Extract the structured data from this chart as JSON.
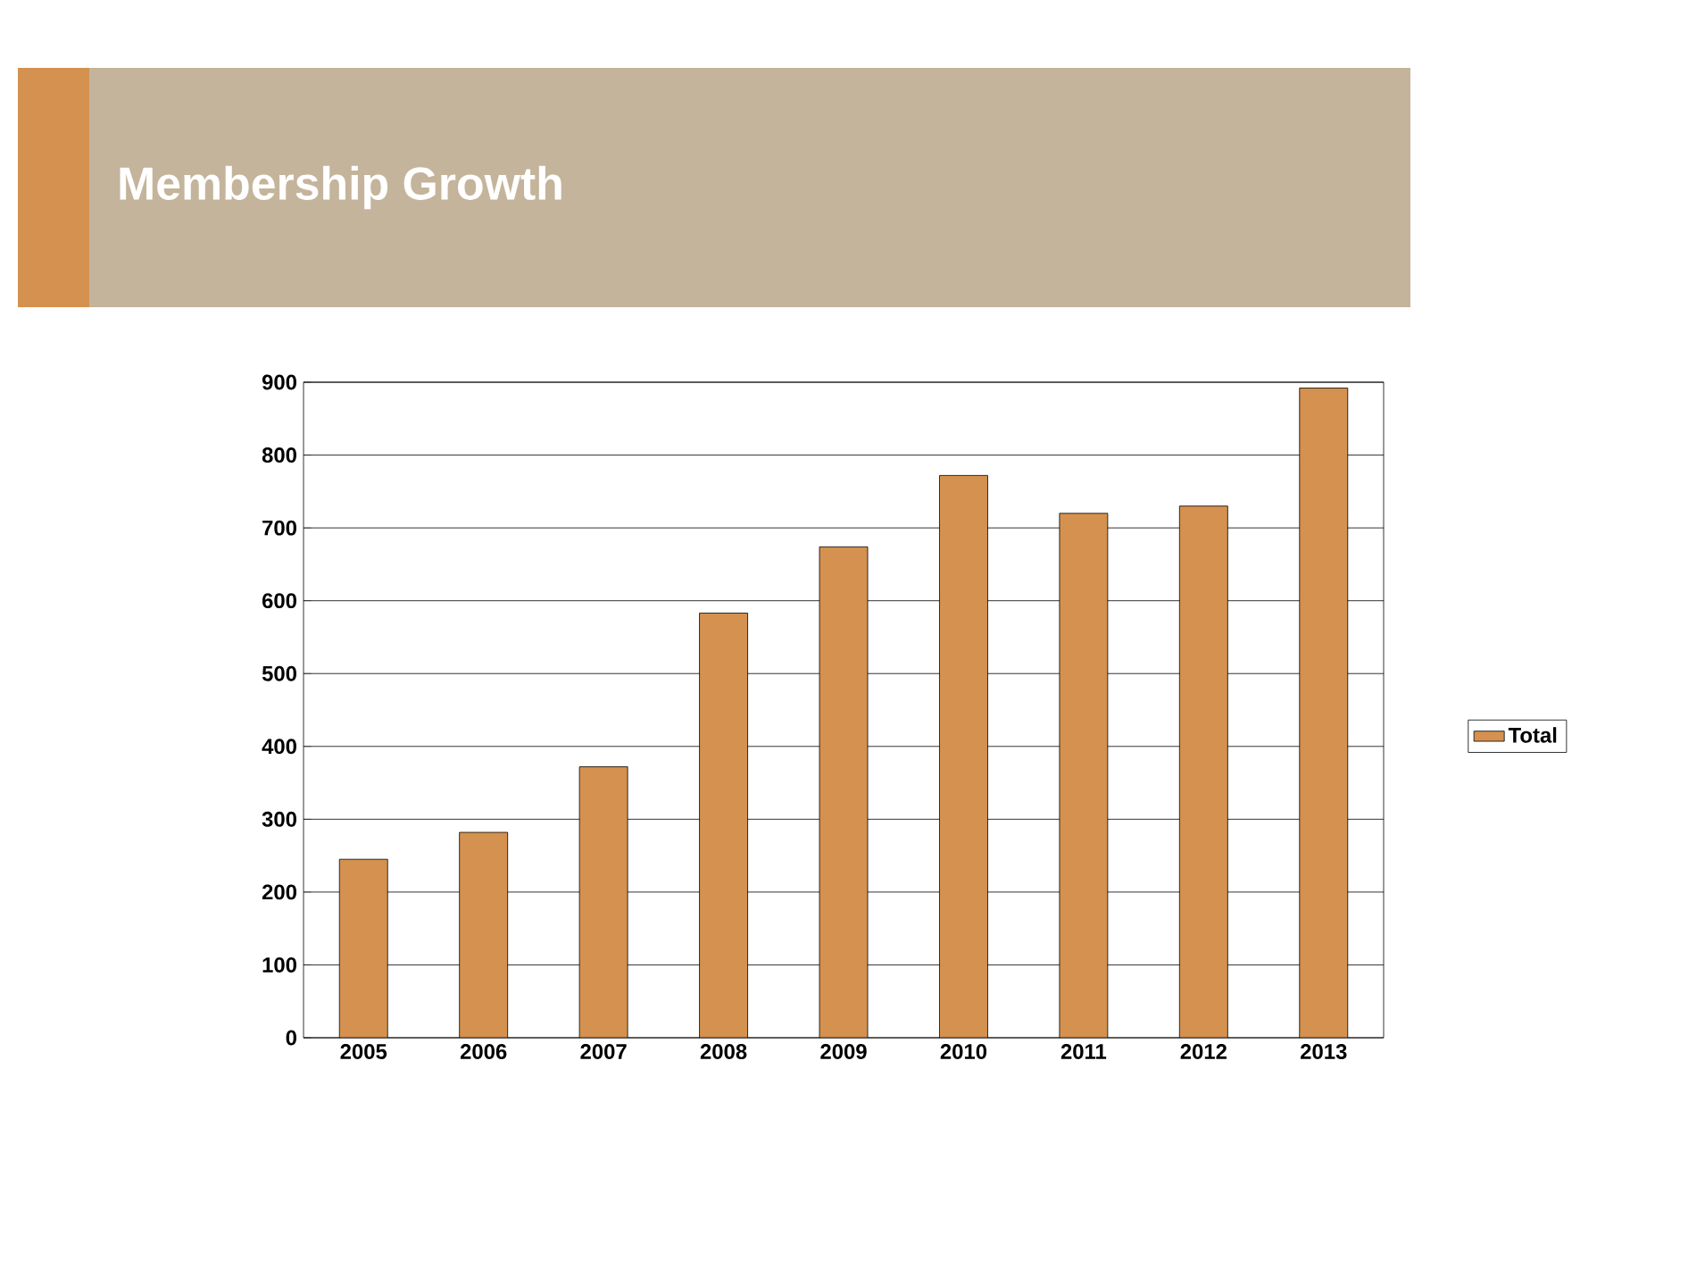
{
  "chart_data": {
    "type": "bar",
    "title": "Membership Growth",
    "categories": [
      "2005",
      "2006",
      "2007",
      "2008",
      "2009",
      "2010",
      "2011",
      "2012",
      "2013"
    ],
    "series": [
      {
        "name": "Total",
        "color": "#d4914f",
        "values": [
          245,
          282,
          372,
          583,
          674,
          772,
          720,
          730,
          892
        ]
      }
    ],
    "ylim": [
      0,
      900
    ],
    "yticks": [
      0,
      100,
      200,
      300,
      400,
      500,
      600,
      700,
      800,
      900
    ],
    "grid": "y",
    "legend": "right"
  }
}
